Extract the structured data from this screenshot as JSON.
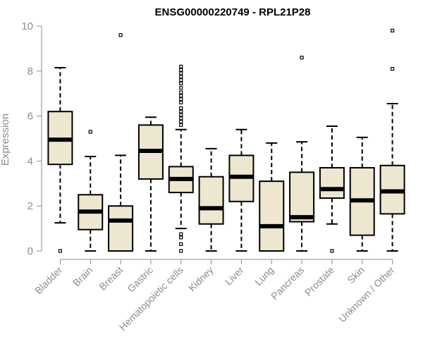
{
  "chart_data": {
    "type": "box",
    "title": "ENSG00000220749 - RPL21P28",
    "xlabel": "",
    "ylabel": "Expression",
    "ylim": [
      0,
      10
    ],
    "yticks": [
      0,
      2,
      4,
      6,
      8,
      10
    ],
    "grid": false,
    "legend": "none",
    "colors": {
      "box_fill": "#EDE7CF",
      "median": "#000000",
      "axis": "#8C8C8C"
    },
    "categories": [
      "Bladder",
      "Brain",
      "Breast",
      "Gastric",
      "Hematopoietic cells",
      "Kidney",
      "Liver",
      "Lung",
      "Pancreas",
      "Prostate",
      "Skin",
      "Unknown / Other"
    ],
    "boxes": [
      {
        "category": "Bladder",
        "whisker_low": 1.25,
        "q1": 3.85,
        "median": 4.95,
        "q3": 6.2,
        "whisker_high": 8.15,
        "outliers": [
          0.0
        ]
      },
      {
        "category": "Brain",
        "whisker_low": 0.0,
        "q1": 0.95,
        "median": 1.75,
        "q3": 2.5,
        "whisker_high": 4.2,
        "outliers": [
          5.3
        ]
      },
      {
        "category": "Breast",
        "whisker_low": 0.0,
        "q1": 0.0,
        "median": 1.35,
        "q3": 2.0,
        "whisker_high": 4.25,
        "outliers": [
          9.6
        ]
      },
      {
        "category": "Gastric",
        "whisker_low": 0.0,
        "q1": 3.2,
        "median": 4.45,
        "q3": 5.6,
        "whisker_high": 5.95,
        "outliers": []
      },
      {
        "category": "Hematopoietic cells",
        "whisker_low": 1.0,
        "q1": 2.6,
        "median": 3.2,
        "q3": 3.75,
        "whisker_high": 5.4,
        "outliers": [
          0.0,
          0.3,
          0.6,
          0.75,
          5.6,
          5.75,
          5.9,
          6.05,
          6.2,
          6.35,
          6.6,
          6.75,
          6.9,
          7.05,
          7.25,
          7.45,
          7.6,
          7.75,
          7.9,
          8.05,
          8.2
        ]
      },
      {
        "category": "Kidney",
        "whisker_low": 0.0,
        "q1": 1.2,
        "median": 1.9,
        "q3": 3.3,
        "whisker_high": 4.55,
        "outliers": []
      },
      {
        "category": "Liver",
        "whisker_low": 0.0,
        "q1": 2.2,
        "median": 3.3,
        "q3": 4.25,
        "whisker_high": 5.4,
        "outliers": []
      },
      {
        "category": "Lung",
        "whisker_low": 0.0,
        "q1": 0.0,
        "median": 1.1,
        "q3": 3.1,
        "whisker_high": 4.8,
        "outliers": []
      },
      {
        "category": "Pancreas",
        "whisker_low": 0.0,
        "q1": 1.3,
        "median": 1.5,
        "q3": 3.5,
        "whisker_high": 4.85,
        "outliers": [
          8.6
        ]
      },
      {
        "category": "Prostate",
        "whisker_low": 1.2,
        "q1": 2.35,
        "median": 2.75,
        "q3": 3.7,
        "whisker_high": 5.55,
        "outliers": [
          0.0
        ]
      },
      {
        "category": "Skin",
        "whisker_low": 0.0,
        "q1": 0.7,
        "median": 2.25,
        "q3": 3.7,
        "whisker_high": 5.05,
        "outliers": []
      },
      {
        "category": "Unknown / Other",
        "whisker_low": 0.0,
        "q1": 1.65,
        "median": 2.65,
        "q3": 3.8,
        "whisker_high": 6.55,
        "outliers": [
          8.1,
          9.8
        ]
      }
    ]
  }
}
